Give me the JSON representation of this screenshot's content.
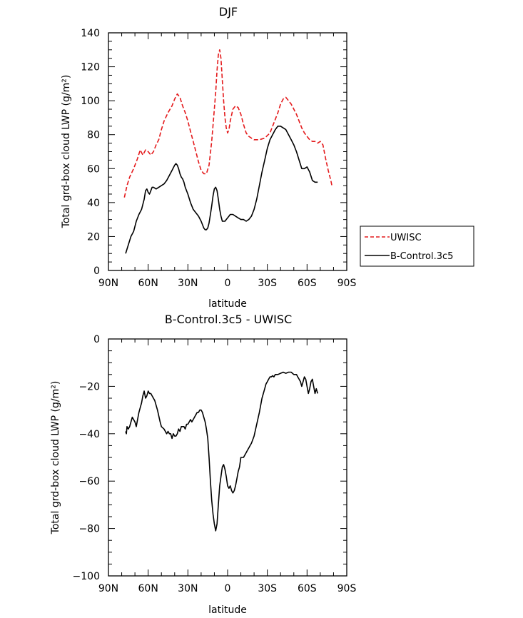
{
  "colors": {
    "uwisc": "#e41a1c",
    "control": "#000000",
    "axis": "#000000",
    "background": "#ffffff"
  },
  "chart_data": [
    {
      "type": "line",
      "title": "DJF",
      "xlabel": "latitude",
      "ylabel": "Total grd-box cloud LWP (g/m²)",
      "x_direction": "north-to-south",
      "xlim": [
        90,
        -90
      ],
      "ylim": [
        0,
        140
      ],
      "x_ticks": [
        90,
        60,
        30,
        0,
        -30,
        -60,
        -90
      ],
      "x_tick_labels": [
        "90N",
        "60N",
        "30N",
        "0",
        "30S",
        "60S",
        "90S"
      ],
      "y_ticks": [
        0,
        20,
        40,
        60,
        80,
        100,
        120,
        140
      ],
      "y_tick_labels": [
        "0",
        "20",
        "40",
        "60",
        "80",
        "100",
        "120",
        "140"
      ],
      "grid": false,
      "legend_position": "right",
      "series": [
        {
          "name": "UWISC",
          "style": "dashed",
          "color": "#e41a1c",
          "x": [
            78,
            76,
            74,
            71,
            68,
            66,
            64,
            62,
            60,
            58,
            56,
            54,
            52,
            50,
            48,
            45,
            42,
            40,
            38,
            36,
            34,
            32,
            30,
            28,
            26,
            24,
            22,
            20,
            18,
            16,
            14,
            12,
            10,
            9,
            8,
            7,
            6,
            5,
            4,
            3,
            2,
            1,
            0,
            -1,
            -2,
            -4,
            -6,
            -8,
            -10,
            -12,
            -14,
            -16,
            -18,
            -20,
            -24,
            -28,
            -32,
            -34,
            -36,
            -38,
            -40,
            -42,
            -44,
            -46,
            -48,
            -50,
            -52,
            -54,
            -56,
            -58,
            -60,
            -62,
            -64,
            -66,
            -68,
            -70,
            -72,
            -74,
            -76,
            -78,
            -79
          ],
          "y": [
            43,
            50,
            55,
            60,
            66,
            71,
            68,
            71,
            70,
            68,
            70,
            74,
            77,
            83,
            88,
            93,
            97,
            101,
            104,
            102,
            97,
            93,
            88,
            82,
            76,
            70,
            64,
            59,
            57,
            57,
            62,
            76,
            95,
            105,
            118,
            127,
            130,
            125,
            112,
            100,
            90,
            84,
            81,
            83,
            88,
            95,
            97,
            96,
            92,
            86,
            81,
            79,
            78,
            77,
            77,
            78,
            81,
            85,
            89,
            93,
            98,
            101,
            102,
            100,
            98,
            95,
            92,
            88,
            84,
            81,
            79,
            77,
            76,
            76,
            75,
            76,
            74,
            66,
            59,
            53,
            49
          ]
        },
        {
          "name": "B-Control.3c5",
          "style": "solid",
          "color": "#000000",
          "x": [
            77,
            75,
            73,
            71,
            69,
            67,
            65,
            63,
            62,
            61,
            60,
            59,
            58,
            57,
            56,
            54,
            52,
            50,
            48,
            46,
            44,
            42,
            40,
            39,
            38,
            37,
            36,
            35,
            34,
            33,
            32,
            30,
            28,
            26,
            24,
            22,
            20,
            18,
            17,
            16,
            15,
            14,
            13,
            12,
            11,
            10,
            9,
            8,
            7,
            6,
            5,
            4,
            3,
            2,
            1,
            0,
            -1,
            -2,
            -4,
            -6,
            -8,
            -10,
            -12,
            -14,
            -16,
            -18,
            -20,
            -22,
            -24,
            -26,
            -28,
            -30,
            -32,
            -34,
            -36,
            -38,
            -40,
            -42,
            -44,
            -46,
            -48,
            -50,
            -52,
            -54,
            -56,
            -58,
            -60,
            -62,
            -64,
            -66,
            -68
          ],
          "y": [
            10,
            15,
            20,
            23,
            29,
            33,
            36,
            42,
            47,
            48,
            46,
            45,
            47,
            49,
            49,
            48,
            49,
            50,
            51,
            53,
            56,
            59,
            62,
            63,
            62,
            60,
            57,
            55,
            54,
            52,
            49,
            45,
            40,
            36,
            34,
            32,
            29,
            25,
            24,
            24,
            25,
            28,
            33,
            38,
            44,
            48,
            49,
            47,
            42,
            36,
            32,
            29,
            29,
            29,
            30,
            31,
            32,
            33,
            33,
            32,
            31,
            30,
            30,
            29,
            30,
            32,
            36,
            42,
            50,
            58,
            65,
            72,
            77,
            80,
            83,
            85,
            85,
            84,
            83,
            80,
            77,
            74,
            70,
            65,
            60,
            60,
            61,
            58,
            53,
            52,
            52
          ]
        }
      ]
    },
    {
      "type": "line",
      "title": "B-Control.3c5 - UWISC",
      "xlabel": "latitude",
      "ylabel": "Total grd-box cloud LWP (g/m²)",
      "x_direction": "north-to-south",
      "xlim": [
        90,
        -90
      ],
      "ylim": [
        -100,
        0
      ],
      "x_ticks": [
        90,
        60,
        30,
        0,
        -30,
        -60,
        -90
      ],
      "x_tick_labels": [
        "90N",
        "60N",
        "30N",
        "0",
        "30S",
        "60S",
        "90S"
      ],
      "y_ticks": [
        -100,
        -80,
        -60,
        -40,
        -20,
        0
      ],
      "y_tick_labels": [
        "−100",
        "−80",
        "−60",
        "−40",
        "−20",
        "0"
      ],
      "grid": false,
      "series": [
        {
          "style": "solid",
          "color": "#000000",
          "x": [
            77,
            76.5,
            76,
            75,
            74,
            72,
            70,
            69,
            68,
            67,
            66,
            65,
            64,
            63,
            62,
            61,
            60,
            59,
            58,
            57,
            55,
            53,
            51,
            50,
            48,
            46,
            45,
            44,
            43,
            42,
            41,
            40,
            39,
            38,
            37,
            36,
            35,
            34,
            33,
            32,
            31,
            30,
            29,
            28,
            27,
            26,
            25,
            24,
            23,
            22,
            21,
            20,
            19,
            18,
            17,
            16,
            15,
            14,
            13,
            12,
            11,
            10,
            9,
            8,
            7,
            6,
            5,
            4,
            3,
            2,
            1,
            0,
            -1,
            -2,
            -3,
            -4,
            -5,
            -6,
            -7,
            -8,
            -9,
            -10,
            -11,
            -12,
            -13,
            -14,
            -15,
            -16,
            -17,
            -18,
            -20,
            -22,
            -24,
            -26,
            -27,
            -28,
            -29,
            -30,
            -31,
            -32,
            -33,
            -34,
            -35,
            -36,
            -38,
            -40,
            -42,
            -44,
            -46,
            -48,
            -50,
            -52,
            -53,
            -54,
            -55,
            -56,
            -57,
            -58,
            -59,
            -60,
            -61,
            -62,
            -63,
            -64,
            -65,
            -66,
            -67,
            -68
          ],
          "y": [
            -39,
            -40,
            -37,
            -38,
            -37,
            -33,
            -35,
            -37,
            -34,
            -31,
            -29,
            -27,
            -24,
            -22,
            -25,
            -24,
            -22,
            -23,
            -23,
            -24,
            -26,
            -30,
            -35,
            -37,
            -38,
            -40,
            -39,
            -40,
            -40,
            -42,
            -40,
            -41,
            -41,
            -40,
            -38,
            -39,
            -37,
            -37,
            -37,
            -38,
            -36,
            -36,
            -35,
            -34,
            -35,
            -34,
            -33,
            -32,
            -31,
            -31,
            -30,
            -30,
            -31,
            -33,
            -35,
            -38,
            -42,
            -50,
            -60,
            -68,
            -74,
            -78,
            -81,
            -78,
            -70,
            -62,
            -58,
            -54,
            -53,
            -55,
            -58,
            -62,
            -63,
            -62,
            -64,
            -65,
            -64,
            -62,
            -59,
            -56,
            -54,
            -50,
            -50,
            -50,
            -49,
            -48,
            -47,
            -46,
            -45,
            -44,
            -41,
            -36,
            -31,
            -25,
            -23,
            -21,
            -19,
            -18,
            -17,
            -16,
            -16,
            -15.5,
            -16,
            -15,
            -15,
            -14.5,
            -14,
            -14.5,
            -14,
            -14,
            -15,
            -15,
            -16,
            -17,
            -18,
            -20,
            -18,
            -16,
            -17,
            -20,
            -23,
            -21,
            -18,
            -17,
            -20,
            -23,
            -21,
            -23
          ]
        }
      ]
    }
  ]
}
